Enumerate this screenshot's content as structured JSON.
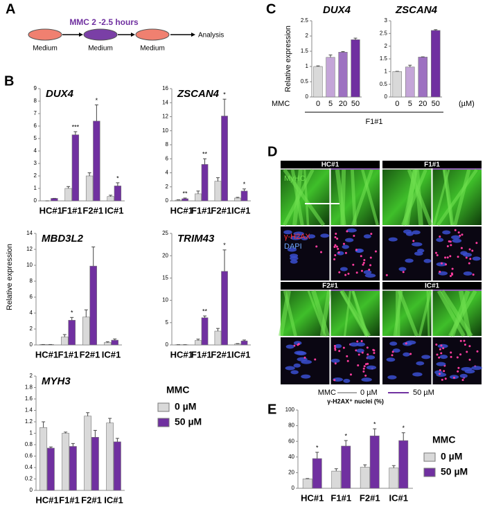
{
  "panels": [
    "A",
    "B",
    "C",
    "D",
    "E"
  ],
  "diagram": {
    "treatment": "MMC 2 -2.5 hours",
    "stages": [
      "Medium",
      "Medium",
      "Medium"
    ],
    "end": "Analysis"
  },
  "panel_c": {
    "xlabel": "MMC",
    "unit": "(µM)",
    "group": "F1#1"
  },
  "micrographs": {
    "columns": [
      "HC#1",
      "F1#1",
      "F2#1",
      "IC#1"
    ],
    "stains": [
      "MyHC",
      "γ-H2AX",
      "DAPI"
    ],
    "legend_title": "MMC",
    "legend": [
      "0 µM",
      "50 µM"
    ]
  },
  "chart_data": [
    {
      "type": "bar",
      "title": "DUX4",
      "categories": [
        "HC#1",
        "F1#1",
        "F2#1",
        "IC#1"
      ],
      "ylim": [
        0,
        9
      ],
      "yticks": [
        0,
        1,
        2,
        3,
        4,
        5,
        6,
        7,
        8,
        9
      ],
      "series": [
        {
          "color": "#d9d9d9",
          "values": [
            0,
            1.0,
            2.0,
            0.35
          ],
          "errors": [
            0,
            0.15,
            0.25,
            0.1
          ]
        },
        {
          "color": "#7030a0",
          "values": [
            0.2,
            5.3,
            6.4,
            1.2
          ],
          "errors": [
            0,
            0.25,
            1.3,
            0.25
          ],
          "significance": [
            null,
            "***",
            "*",
            "*"
          ]
        }
      ]
    },
    {
      "type": "bar",
      "title": "ZSCAN4",
      "categories": [
        "HC#1",
        "F1#1",
        "F2#1",
        "IC#1"
      ],
      "ylim": [
        0,
        16
      ],
      "yticks": [
        0,
        2,
        4,
        6,
        8,
        10,
        12,
        14,
        16
      ],
      "series": [
        {
          "color": "#d9d9d9",
          "values": [
            0.1,
            1.0,
            2.8,
            0.4
          ],
          "errors": [
            0.05,
            0.4,
            0.5,
            0.1
          ]
        },
        {
          "color": "#7030a0",
          "values": [
            0.3,
            5.2,
            12.1,
            1.4
          ],
          "errors": [
            0.1,
            0.8,
            2.4,
            0.3
          ],
          "significance": [
            "**",
            "**",
            "*",
            "*"
          ]
        }
      ]
    },
    {
      "type": "bar",
      "title": "MBD3L2",
      "ylabel": "Relative expression",
      "categories": [
        "HC#1",
        "F1#1",
        "F2#1",
        "IC#1"
      ],
      "ylim": [
        0,
        14
      ],
      "yticks": [
        0,
        2,
        4,
        6,
        8,
        10,
        12,
        14
      ],
      "series": [
        {
          "color": "#d9d9d9",
          "values": [
            0.05,
            1.0,
            3.5,
            0.3
          ],
          "errors": [
            0,
            0.3,
            0.9,
            0.1
          ]
        },
        {
          "color": "#7030a0",
          "values": [
            0.05,
            3.1,
            9.9,
            0.6
          ],
          "errors": [
            0,
            0.35,
            2.4,
            0.15
          ],
          "significance": [
            null,
            "*",
            null,
            null
          ]
        }
      ]
    },
    {
      "type": "bar",
      "title": "TRIM43",
      "categories": [
        "HC#1",
        "F1#1",
        "F2#1",
        "IC#1"
      ],
      "ylim": [
        0,
        25
      ],
      "yticks": [
        0,
        5,
        10,
        15,
        20,
        25
      ],
      "series": [
        {
          "color": "#d9d9d9",
          "values": [
            0.05,
            1.0,
            3.1,
            0.2
          ],
          "errors": [
            0,
            0.3,
            0.6,
            0.1
          ]
        },
        {
          "color": "#7030a0",
          "values": [
            0.05,
            6.1,
            16.5,
            0.9
          ],
          "errors": [
            0,
            0.4,
            4.8,
            0.2
          ],
          "significance": [
            null,
            "**",
            "*",
            null
          ]
        }
      ]
    },
    {
      "type": "bar",
      "title": "MYH3",
      "legend_title": "MMC",
      "categories": [
        "HC#1",
        "F1#1",
        "F2#1",
        "IC#1"
      ],
      "ylim": [
        0,
        2
      ],
      "yticks": [
        0,
        0.2,
        0.4,
        0.6,
        0.8,
        1,
        1.2,
        1.4,
        1.6,
        1.8,
        2
      ],
      "series": [
        {
          "name": "0 µM",
          "color": "#d9d9d9",
          "values": [
            1.1,
            1.0,
            1.3,
            1.18
          ],
          "errors": [
            0.1,
            0.02,
            0.06,
            0.08
          ]
        },
        {
          "name": "50 µM",
          "color": "#7030a0",
          "values": [
            0.74,
            0.77,
            0.93,
            0.85
          ],
          "errors": [
            0.02,
            0.05,
            0.12,
            0.06
          ]
        }
      ]
    },
    {
      "type": "bar",
      "title": "DUX4",
      "ylabel": "Relative expression",
      "categories": [
        "0",
        "5",
        "20",
        "50"
      ],
      "ylim": [
        0,
        2.5
      ],
      "yticks": [
        0,
        0.5,
        1,
        1.5,
        2,
        2.5
      ],
      "values": [
        1.0,
        1.3,
        1.47,
        1.88
      ],
      "errors": [
        0.02,
        0.08,
        0.02,
        0.05
      ],
      "colors": [
        "#d9d9d9",
        "#c4a5d8",
        "#9d71c1",
        "#7030a0"
      ]
    },
    {
      "type": "bar",
      "title": "ZSCAN4",
      "categories": [
        "0",
        "5",
        "20",
        "50"
      ],
      "ylim": [
        0,
        3
      ],
      "yticks": [
        0,
        0.5,
        1,
        1.5,
        2,
        2.5,
        3
      ],
      "values": [
        1.0,
        1.18,
        1.57,
        2.62
      ],
      "errors": [
        0.01,
        0.07,
        0.01,
        0.03
      ],
      "colors": [
        "#d9d9d9",
        "#c4a5d8",
        "#9d71c1",
        "#7030a0"
      ]
    },
    {
      "type": "bar",
      "title": "γ-H2AX⁺ nuclei (%)",
      "legend_title": "MMC",
      "categories": [
        "HC#1",
        "F1#1",
        "F2#1",
        "IC#1"
      ],
      "ylim": [
        0,
        100
      ],
      "yticks": [
        0,
        20,
        40,
        60,
        80,
        100
      ],
      "series": [
        {
          "name": "0 µM",
          "color": "#d9d9d9",
          "values": [
            12,
            22,
            27,
            26
          ],
          "errors": [
            0.5,
            3,
            3,
            3
          ]
        },
        {
          "name": "50 µM",
          "color": "#7030a0",
          "values": [
            38,
            54,
            67,
            61
          ],
          "errors": [
            8,
            7,
            9,
            10
          ],
          "significance": [
            "*",
            "*",
            "*",
            "*"
          ]
        }
      ]
    }
  ]
}
